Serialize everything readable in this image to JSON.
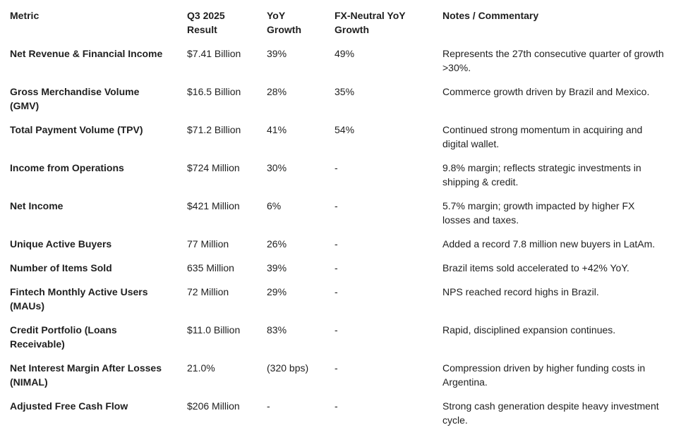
{
  "headers": {
    "metric": "Metric",
    "result": "Q3 2025 Result",
    "yoy": "YoY Growth",
    "fx": "FX-Neutral YoY Growth",
    "notes": "Notes / Commentary"
  },
  "rows": [
    {
      "metric": "Net Revenue & Financial Income",
      "result": "$7.41 Billion",
      "yoy": "39%",
      "fx": "49%",
      "notes": "Represents the 27th consecutive quarter of growth >30%."
    },
    {
      "metric": "Gross Merchandise Volume (GMV)",
      "result": "$16.5 Billion",
      "yoy": "28%",
      "fx": "35%",
      "notes": "Commerce growth driven by Brazil and Mexico."
    },
    {
      "metric": "Total Payment Volume (TPV)",
      "result": "$71.2 Billion",
      "yoy": "41%",
      "fx": "54%",
      "notes": "Continued strong momentum in acquiring and digital wallet."
    },
    {
      "metric": "Income from Operations",
      "result": "$724 Million",
      "yoy": "30%",
      "fx": "-",
      "notes": "9.8% margin; reflects strategic investments in shipping & credit."
    },
    {
      "metric": "Net Income",
      "result": "$421 Million",
      "yoy": "6%",
      "fx": "-",
      "notes": "5.7% margin; growth impacted by higher FX losses and taxes."
    },
    {
      "metric": "Unique Active Buyers",
      "result": "77 Million",
      "yoy": "26%",
      "fx": "-",
      "notes": "Added a record 7.8 million new buyers in LatAm."
    },
    {
      "metric": "Number of Items Sold",
      "result": "635 Million",
      "yoy": "39%",
      "fx": "-",
      "notes": "Brazil items sold accelerated to +42% YoY."
    },
    {
      "metric": "Fintech Monthly Active Users (MAUs)",
      "result": "72 Million",
      "yoy": "29%",
      "fx": "-",
      "notes": "NPS reached record highs in Brazil."
    },
    {
      "metric": "Credit Portfolio (Loans Receivable)",
      "result": "$11.0 Billion",
      "yoy": "83%",
      "fx": "-",
      "notes": "Rapid, disciplined expansion continues."
    },
    {
      "metric": "Net Interest Margin After Losses (NIMAL)",
      "result": "21.0%",
      "yoy": "(320 bps)",
      "fx": "-",
      "notes": "Compression driven by higher funding costs in Argentina."
    },
    {
      "metric": "Adjusted Free Cash Flow",
      "result": "$206 Million",
      "yoy": "-",
      "fx": "-",
      "notes": "Strong cash generation despite heavy investment cycle."
    }
  ]
}
